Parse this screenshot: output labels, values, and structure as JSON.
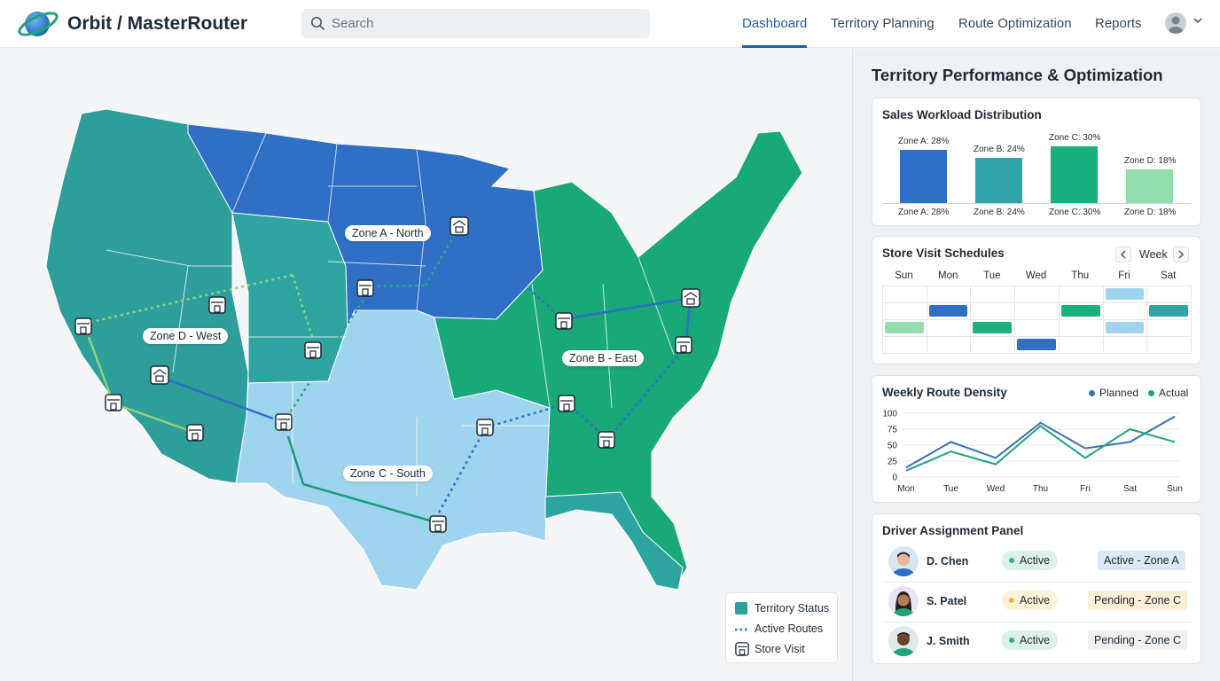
{
  "app": {
    "brand": "Orbit / MasterRouter",
    "search_placeholder": "Search",
    "nav": [
      "Dashboard",
      "Territory Planning",
      "Route Optimization",
      "Reports"
    ],
    "active_nav": "Dashboard"
  },
  "map": {
    "zones": [
      {
        "label": "Zone A - North",
        "color": "#2f6fc6"
      },
      {
        "label": "Zone B - East",
        "color": "#19a878"
      },
      {
        "label": "Zone C - South",
        "color": "#9fd4ef"
      },
      {
        "label": "Zone D - West",
        "color": "#2e9e9a"
      }
    ],
    "legend": {
      "territory_status": "Territory Status",
      "active_routes": "Active Routes",
      "store_visit": "Store Visit"
    },
    "icons": [
      "store-icon",
      "warehouse-icon",
      "route-arrow"
    ]
  },
  "panel": {
    "title": "Territory Performance & Optimization",
    "workload": {
      "title": "Sales Workload Distribution",
      "bars": [
        {
          "top_label": "Zone A: 28%",
          "bottom_label": "Zone A: 28%",
          "color": "#2f6fc6"
        },
        {
          "top_label": "Zone B: 24%",
          "bottom_label": "Zone B: 24%",
          "color": "#2ea4a8"
        },
        {
          "top_label": "Zone C: 30%",
          "bottom_label": "Zone C: 30%",
          "color": "#19b07f"
        },
        {
          "top_label": "Zone D: 18%",
          "bottom_label": "Zone D: 18%",
          "color": "#93dcae"
        }
      ]
    },
    "schedule": {
      "title": "Store Visit Schedules",
      "period": "Week",
      "days": [
        "Sun",
        "Mon",
        "Tue",
        "Wed",
        "Thu",
        "Fri",
        "Sat"
      ]
    },
    "density": {
      "title": "Weekly Route Density",
      "legend_planned": "Planned",
      "legend_actual": "Actual",
      "planned_color": "#3a6fb8",
      "actual_color": "#1fa37c"
    },
    "drivers": {
      "title": "Driver Assignment Panel",
      "rows": [
        {
          "name": "D. Chen",
          "status": "Active",
          "status_dot": "#27b47a",
          "assignment": "Active - Zone A",
          "assign_bg": "#dbe8f5"
        },
        {
          "name": "S. Patel",
          "status": "Active",
          "status_dot": "#f2b72b",
          "assignment": "Pending - Zone C",
          "assign_bg": "#fcefd5"
        },
        {
          "name": "J. Smith",
          "status": "Active",
          "status_dot": "#27b47a",
          "assignment": "Pending - Zone C",
          "assign_bg": "#eef0f2"
        }
      ]
    }
  },
  "chart_data": [
    {
      "type": "bar",
      "title": "Sales Workload Distribution",
      "categories": [
        "Zone A",
        "Zone B",
        "Zone C",
        "Zone D"
      ],
      "values": [
        28,
        24,
        30,
        18
      ],
      "ylim": [
        0,
        30
      ]
    },
    {
      "type": "line",
      "title": "Weekly Route Density",
      "x": [
        "Mon",
        "Tue",
        "Wed",
        "Thu",
        "Fri",
        "Sat",
        "Sun"
      ],
      "yticks": [
        0,
        25,
        50,
        75,
        100
      ],
      "ylim": [
        0,
        100
      ],
      "series": [
        {
          "name": "Planned",
          "values": [
            15,
            55,
            30,
            85,
            45,
            55,
            95
          ]
        },
        {
          "name": "Actual",
          "values": [
            10,
            40,
            20,
            80,
            30,
            75,
            55
          ]
        }
      ],
      "legend": "top-right"
    }
  ]
}
